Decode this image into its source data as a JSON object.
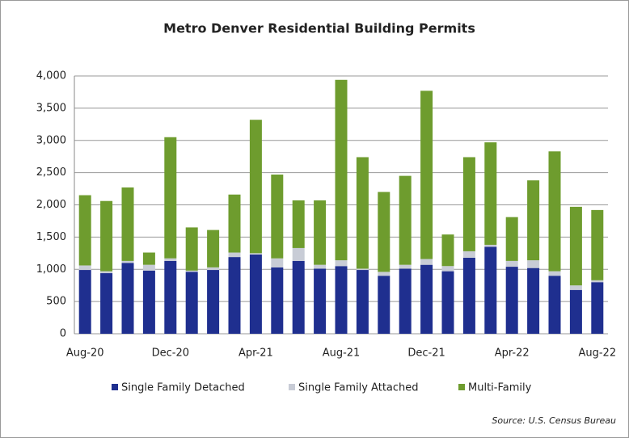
{
  "chart_data": {
    "type": "stacked_bar",
    "title": "Metro Denver Residential Building Permits",
    "source": "Source: U.S. Census Bureau",
    "categories": [
      "Aug-20",
      null,
      null,
      null,
      "Dec-20",
      null,
      null,
      null,
      "Apr-21",
      null,
      null,
      null,
      "Aug-21",
      null,
      null,
      null,
      "Dec-21",
      null,
      null,
      null,
      "Apr-22",
      null,
      null,
      null,
      "Aug-22"
    ],
    "series": [
      {
        "name": "Single Family Detached",
        "color": "#1f2f8f",
        "values": [
          990,
          940,
          1100,
          980,
          1130,
          960,
          990,
          1190,
          1230,
          1030,
          1130,
          1010,
          1050,
          990,
          900,
          1010,
          1070,
          970,
          1180,
          1350,
          1040,
          1020,
          900,
          680,
          800
        ]
      },
      {
        "name": "Single Family Attached",
        "color": "#c8ccd6",
        "values": [
          70,
          30,
          30,
          90,
          40,
          20,
          40,
          70,
          20,
          140,
          200,
          60,
          90,
          20,
          60,
          60,
          90,
          80,
          100,
          30,
          90,
          120,
          70,
          70,
          30
        ]
      },
      {
        "name": "Multi-Family",
        "color": "#6e9c2e",
        "values": [
          1090,
          1090,
          1140,
          190,
          1880,
          670,
          580,
          900,
          2070,
          1300,
          740,
          1000,
          2800,
          1730,
          1240,
          1380,
          2610,
          490,
          1460,
          1590,
          680,
          1240,
          1860,
          1220,
          1090
        ]
      }
    ],
    "ylim": [
      0,
      4000
    ],
    "yticks": [
      0,
      500,
      {
        "value": 1000,
        "label": "1,000"
      },
      {
        "value": 1500,
        "label": "1,500"
      },
      {
        "value": 2000,
        "label": "2,000"
      },
      {
        "value": 2500,
        "label": "2,500"
      },
      {
        "value": 3000,
        "label": "3,000"
      },
      {
        "value": 3500,
        "label": "3,500"
      },
      {
        "value": 4000,
        "label": "4,000"
      }
    ],
    "grid": true,
    "legend": "bottom"
  }
}
